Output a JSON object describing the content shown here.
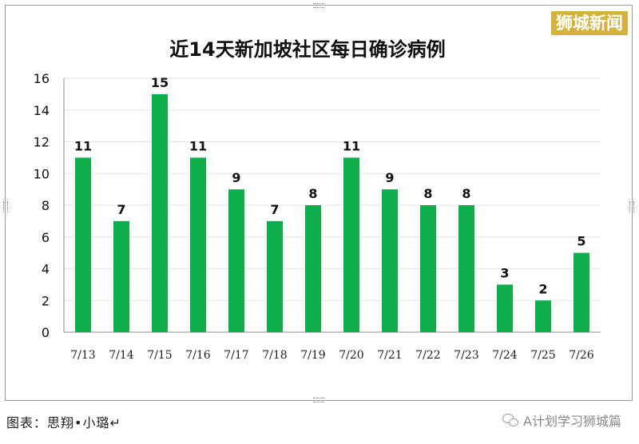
{
  "chart_data": {
    "type": "bar",
    "title": "近14天新加坡社区每日确诊病例",
    "categories": [
      "7/13",
      "7/14",
      "7/15",
      "7/16",
      "7/17",
      "7/18",
      "7/19",
      "7/20",
      "7/21",
      "7/22",
      "7/23",
      "7/24",
      "7/25",
      "7/26"
    ],
    "values": [
      11,
      7,
      15,
      11,
      9,
      7,
      8,
      11,
      9,
      8,
      8,
      3,
      2,
      5
    ],
    "ylim": [
      0,
      16
    ],
    "yticks": [
      0,
      2,
      4,
      6,
      8,
      10,
      12,
      14,
      16
    ],
    "xlabel": "",
    "ylabel": "",
    "bar_color": "#10ad4c",
    "grid": true,
    "legend": "none"
  },
  "watermark": "狮城新闻",
  "caption": "图表：思翔•小璐↵",
  "source": "A计划学习狮城篇"
}
